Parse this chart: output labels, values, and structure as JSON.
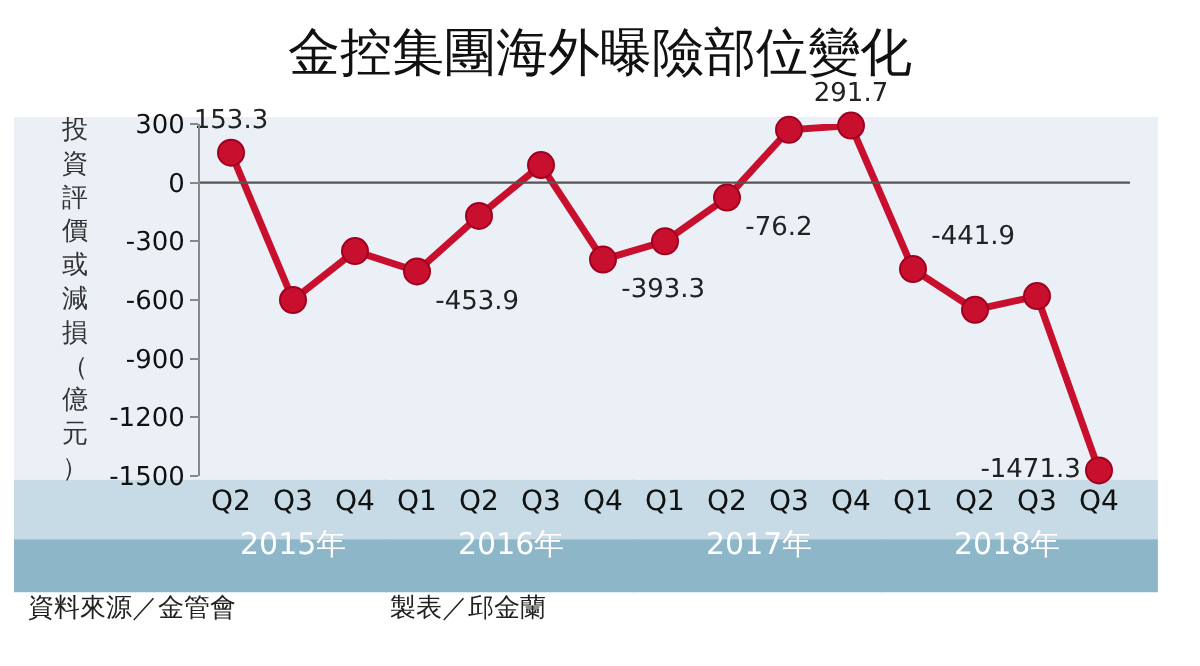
{
  "chart_data": {
    "type": "line",
    "title": "金控集團海外曝險部位變化",
    "ylabel": "投資評價或減損（億元）",
    "categories": [
      "Q2",
      "Q3",
      "Q4",
      "Q1",
      "Q2",
      "Q3",
      "Q4",
      "Q1",
      "Q2",
      "Q3",
      "Q4",
      "Q1",
      "Q2",
      "Q3",
      "Q4"
    ],
    "series": [
      {
        "color": "#c8102e",
        "values": [
          153.3,
          -600,
          -350,
          -453.9,
          -170,
          90,
          -393.3,
          -300,
          -76.2,
          270,
          291.7,
          -441.9,
          -650,
          -580,
          -1471.3
        ],
        "value_labels": [
          "153.3",
          null,
          null,
          "-453.9",
          null,
          null,
          "-393.3",
          null,
          "-76.2",
          null,
          "291.7",
          "-441.9",
          null,
          null,
          "-1471.3"
        ]
      }
    ],
    "ylim": [
      -1500,
      300
    ],
    "yticks": [
      -1500,
      -1200,
      -900,
      -600,
      -300,
      0,
      300
    ],
    "ref_lines": [
      {
        "axis": "y",
        "value": 0,
        "color": "#555555"
      }
    ],
    "marker": "circle",
    "line_style": "solid",
    "grid": false,
    "legend": false,
    "annotations": [
      "2015年",
      "2016年",
      "2017年",
      "2018年",
      "資料來源／金管會",
      "製表／邱金蘭"
    ]
  }
}
